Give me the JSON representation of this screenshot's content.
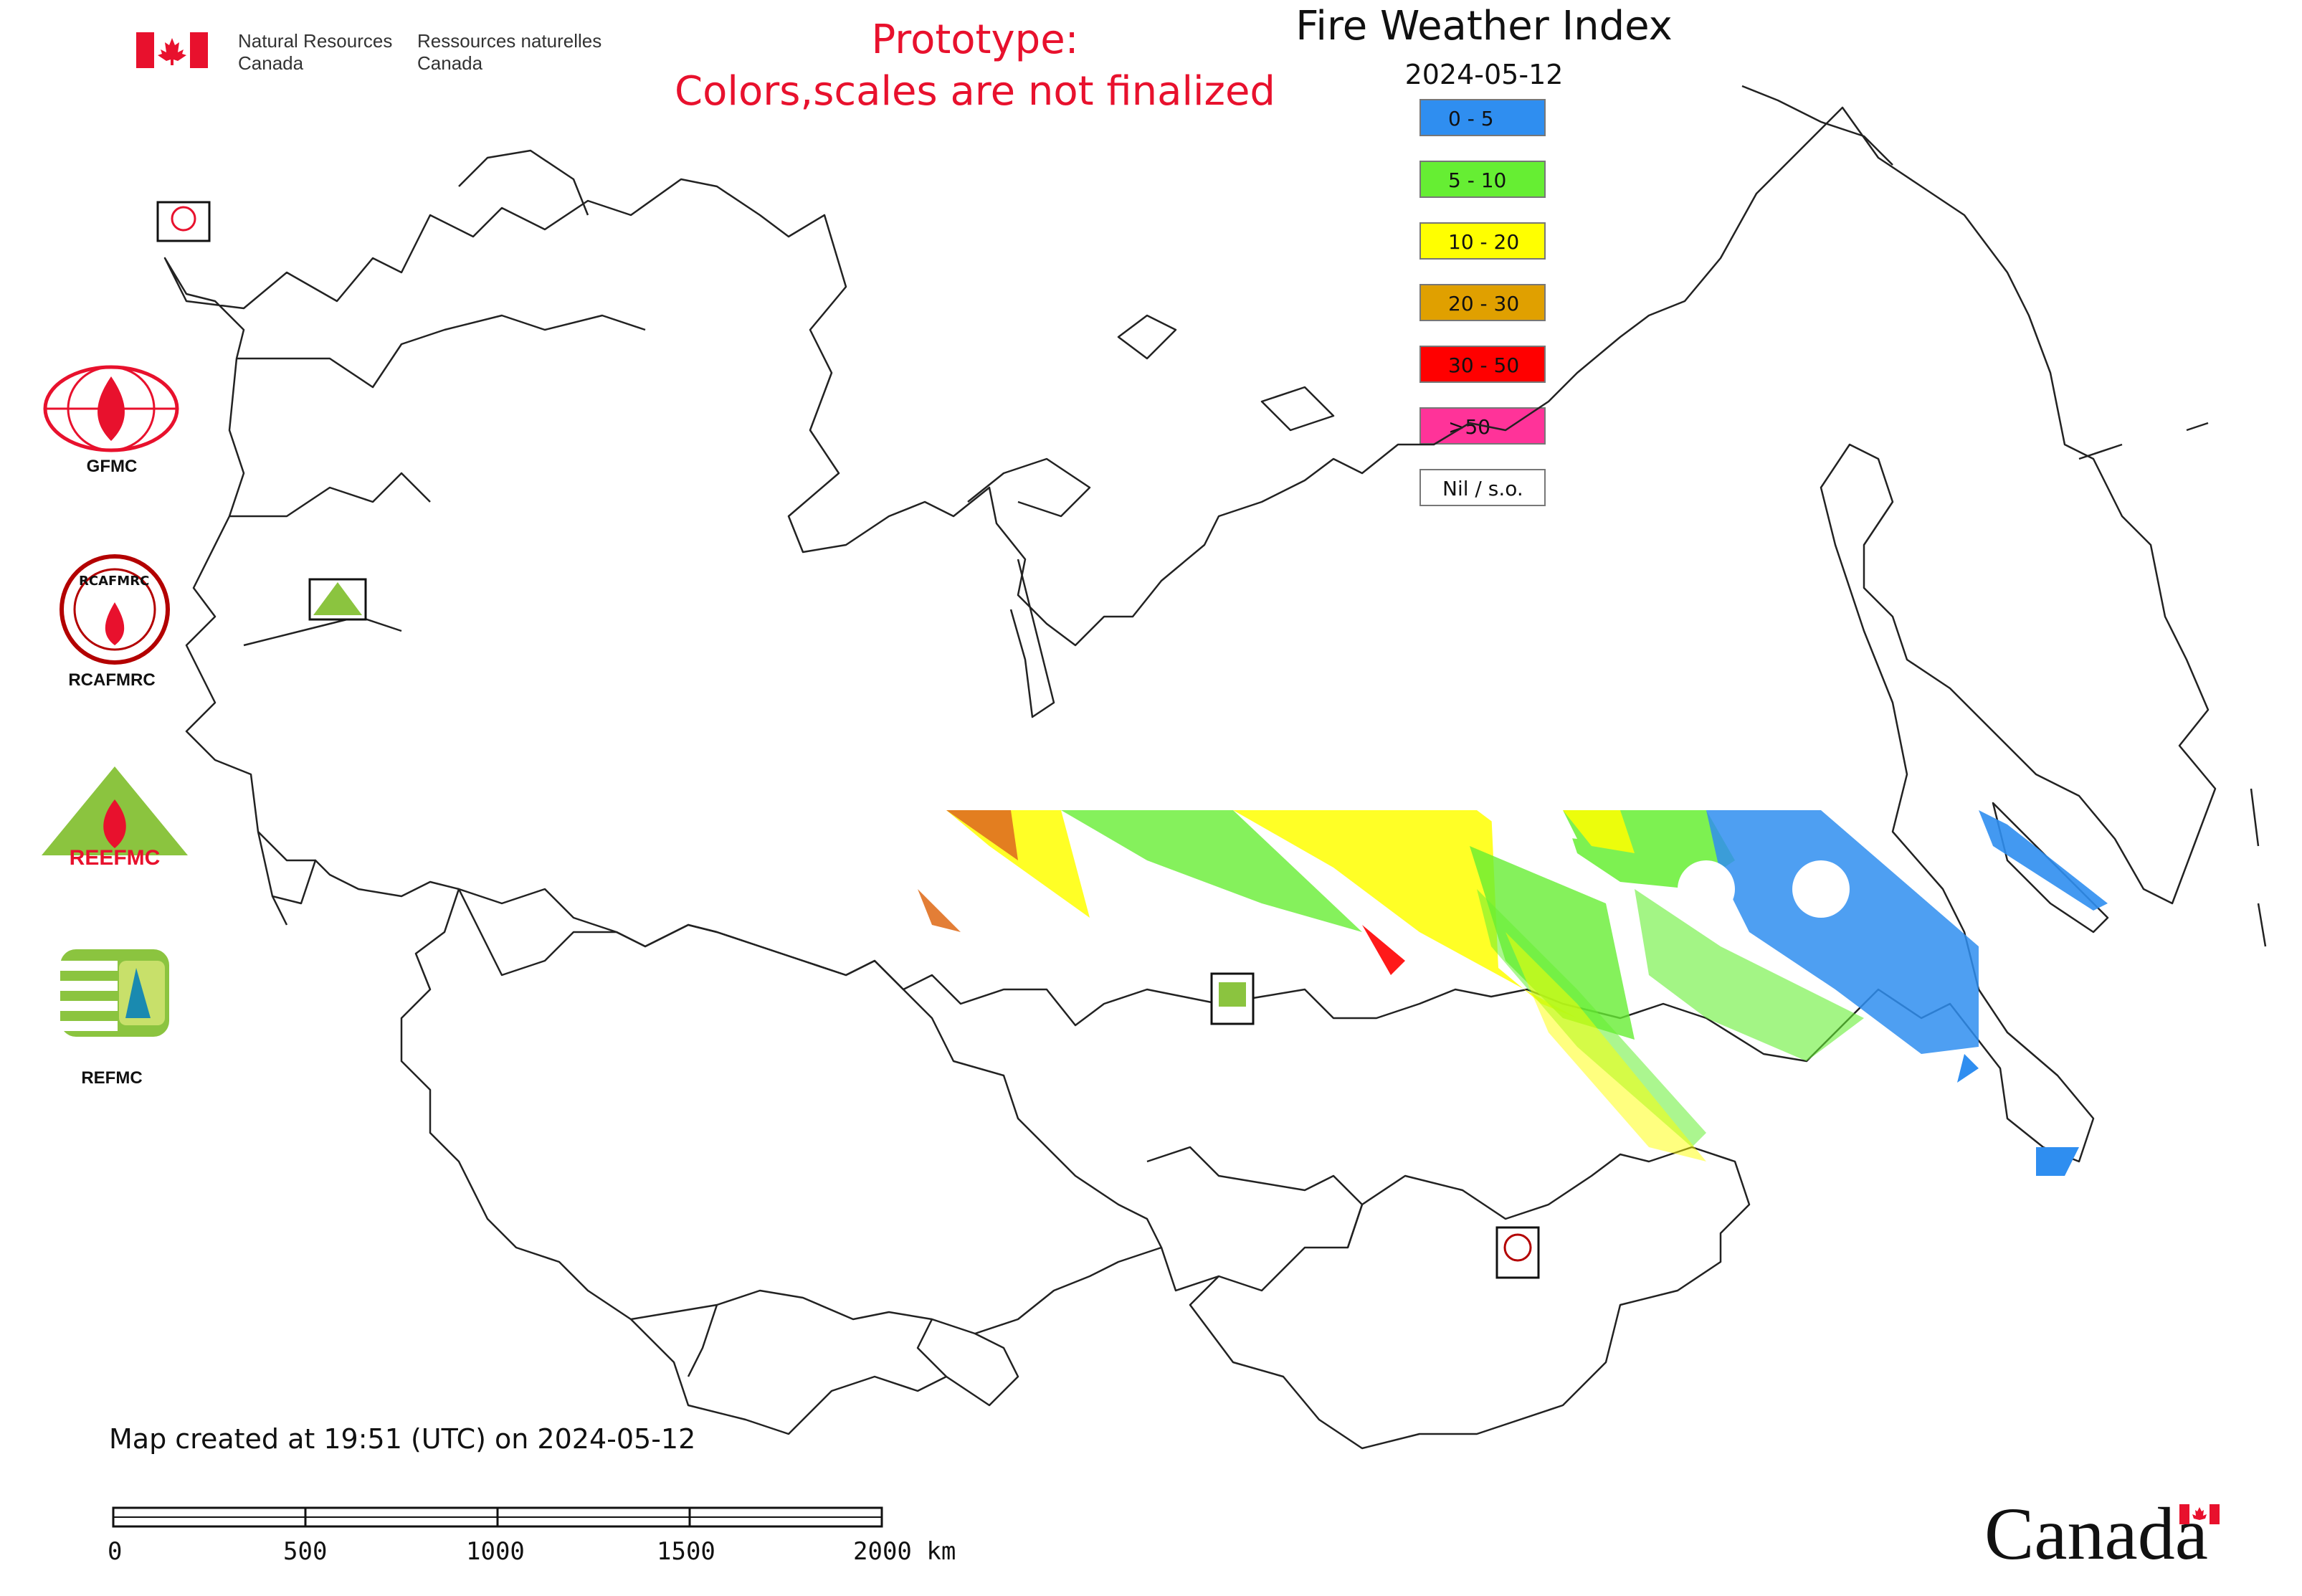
{
  "header": {
    "dept_en_line1": "Natural Resources",
    "dept_en_line2": "Canada",
    "dept_fr_line1": "Ressources naturelles",
    "dept_fr_line2": "Canada",
    "prototype_line1": "Prototype:",
    "prototype_line2": "Colors,scales are not finalized",
    "title": "Fire Weather Index",
    "date": "2024-05-12"
  },
  "legend": [
    {
      "label": "0 - 5",
      "color": "#2f8ef0"
    },
    {
      "label": "5 - 10",
      "color": "#66ee33"
    },
    {
      "label": "10 - 20",
      "color": "#ffff00"
    },
    {
      "label": "20 - 30",
      "color": "#e0a000"
    },
    {
      "label": "30 - 50",
      "color": "#ff0000"
    },
    {
      "label": ">50",
      "color": "#ff3399"
    },
    {
      "label": "Nil / s.o.",
      "color": "#ffffff"
    }
  ],
  "logos": {
    "gfmc": "GFMC",
    "rcafmrc": "RCAFMRC",
    "reefmc": "REEFMC",
    "refmc": "REFMC",
    "reefmc_text": "REEFMC",
    "rcafmrc_inner": "RCAFMRC"
  },
  "footer": {
    "created": "Map created at 19:51 (UTC) on 2024-05-12",
    "scale_labels": [
      "0",
      "500",
      "1000",
      "1500",
      "2000 km"
    ],
    "wordmark": "Canada"
  }
}
